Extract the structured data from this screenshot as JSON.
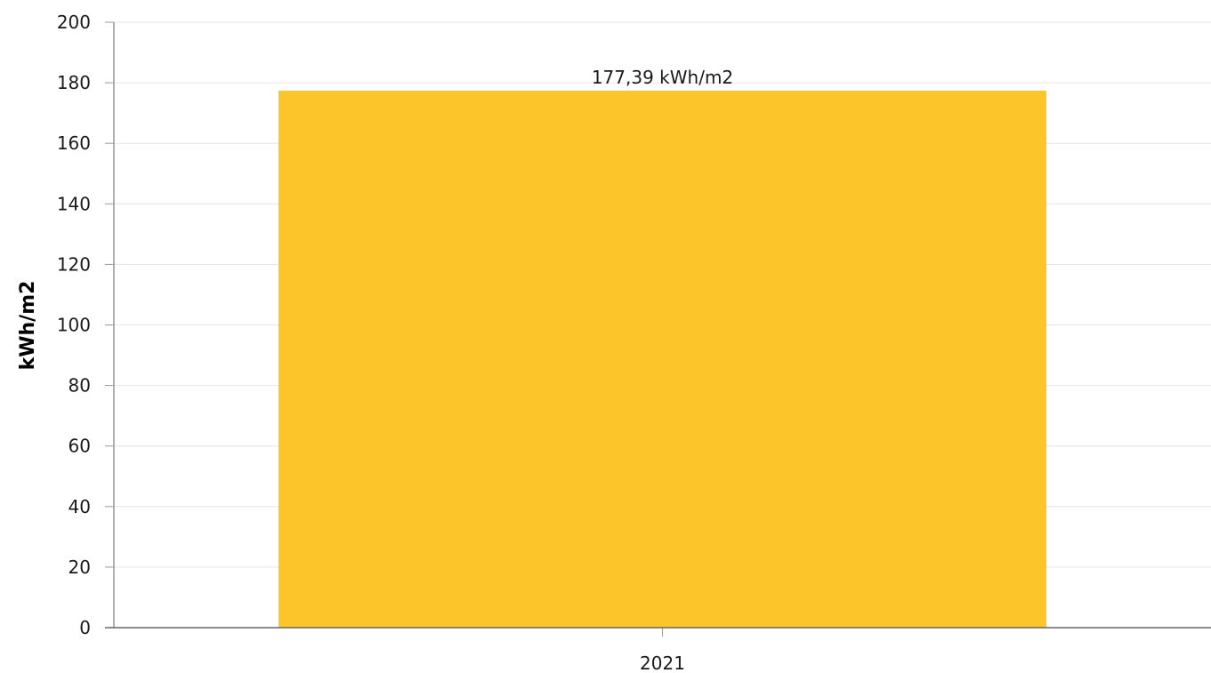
{
  "chart_data": {
    "type": "bar",
    "title": "",
    "xlabel": "",
    "ylabel": "kWh/m2",
    "categories": [
      "2021"
    ],
    "values": [
      177.39
    ],
    "data_labels": [
      "177,39 kWh/m2"
    ],
    "ylim": [
      0,
      200
    ],
    "yticks": [
      0,
      20,
      40,
      60,
      80,
      100,
      120,
      140,
      160,
      180,
      200
    ],
    "ytick_labels": [
      "0",
      "20",
      "40",
      "60",
      "80",
      "100",
      "120",
      "140",
      "160",
      "180",
      "200"
    ],
    "grid": true,
    "legend": "none",
    "bar_color": "#fcc62a",
    "grid_color": "#e6e6e6",
    "axis_color": "#999999"
  }
}
